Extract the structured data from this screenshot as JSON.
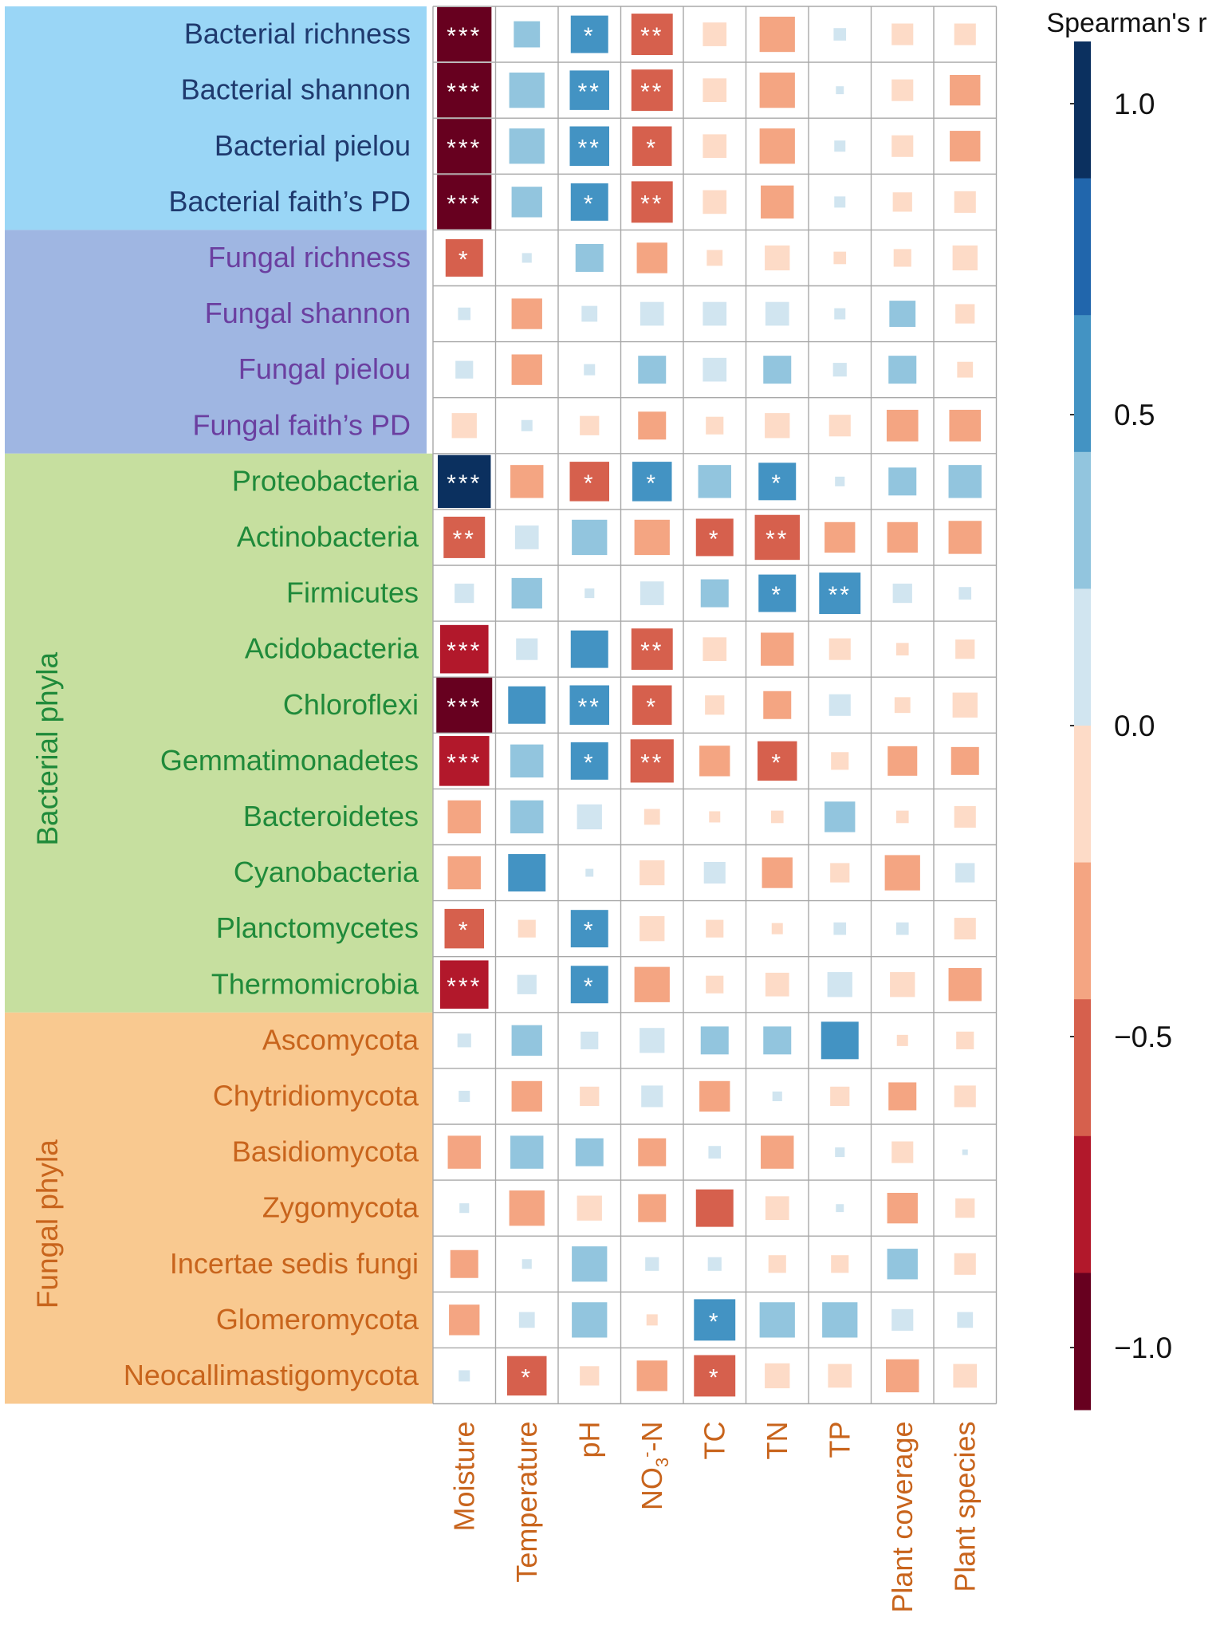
{
  "chart_data": {
    "type": "heatmap",
    "title": "",
    "colorbar": {
      "title": "Spearman's r",
      "ticks": [
        1.0,
        0.5,
        0.0,
        -0.5,
        -1.0
      ],
      "tick_labels": [
        "1.0",
        "0.5",
        "0.0",
        "−0.5",
        "−1.0"
      ],
      "range": [
        -1.1,
        1.1
      ],
      "bins": [
        {
          "from": 0.88,
          "to": 1.1,
          "color": "#0b305f"
        },
        {
          "from": 0.66,
          "to": 0.88,
          "color": "#2166ac"
        },
        {
          "from": 0.44,
          "to": 0.66,
          "color": "#4393c3"
        },
        {
          "from": 0.22,
          "to": 0.44,
          "color": "#92c5de"
        },
        {
          "from": 0.0,
          "to": 0.22,
          "color": "#d1e5f0"
        },
        {
          "from": -0.22,
          "to": 0.0,
          "color": "#fddbc7"
        },
        {
          "from": -0.44,
          "to": -0.22,
          "color": "#f4a582"
        },
        {
          "from": -0.66,
          "to": -0.44,
          "color": "#d6604d"
        },
        {
          "from": -0.88,
          "to": -0.66,
          "color": "#b2182b"
        },
        {
          "from": -1.1,
          "to": -0.88,
          "color": "#67001f"
        }
      ]
    },
    "columns": [
      {
        "label": "Moisture"
      },
      {
        "label": "Temperature"
      },
      {
        "label": "pH"
      },
      {
        "label": "NO3−-N",
        "main": "NO",
        "sub": "3",
        "sup": "-",
        "tail": "-N"
      },
      {
        "label": "TC"
      },
      {
        "label": "TN"
      },
      {
        "label": "TP"
      },
      {
        "label": "Plant coverage"
      },
      {
        "label": "Plant species"
      }
    ],
    "groups": [
      {
        "name": "",
        "color": "#9ad6f6",
        "text_color": "#1f3a6e",
        "rows": 4
      },
      {
        "name": "",
        "color": "#9fb6e2",
        "text_color": "#6b3fa0",
        "rows": 4
      },
      {
        "name": "Bacterial phyla",
        "color": "#c6df9f",
        "text_color": "#1f8a3a",
        "rows": 10
      },
      {
        "name": "Fungal phyla",
        "color": "#f9c990",
        "text_color": "#c8641c",
        "rows": 7
      }
    ],
    "rows": [
      {
        "label": "Bacterial richness",
        "values": [
          -0.95,
          0.22,
          0.45,
          -0.55,
          -0.18,
          -0.4,
          0.05,
          -0.15,
          -0.15
        ],
        "sig": [
          "***",
          "",
          "*",
          "**",
          "",
          "",
          "",
          "",
          ""
        ]
      },
      {
        "label": "Bacterial shannon",
        "values": [
          -0.95,
          0.4,
          0.5,
          -0.55,
          -0.18,
          -0.4,
          0.02,
          -0.15,
          -0.3
        ],
        "sig": [
          "***",
          "",
          "**",
          "**",
          "",
          "",
          "",
          "",
          ""
        ]
      },
      {
        "label": "Bacterial pielou",
        "values": [
          -0.95,
          0.4,
          0.5,
          -0.5,
          -0.18,
          -0.4,
          0.04,
          -0.15,
          -0.3
        ],
        "sig": [
          "***",
          "",
          "**",
          "*",
          "",
          "",
          "",
          "",
          ""
        ]
      },
      {
        "label": "Bacterial faith’s PD",
        "values": [
          -0.95,
          0.3,
          0.45,
          -0.55,
          -0.18,
          -0.35,
          0.04,
          -0.12,
          -0.15
        ],
        "sig": [
          "***",
          "",
          "*",
          "**",
          "",
          "",
          "",
          "",
          ""
        ]
      },
      {
        "label": "Fungal richness",
        "values": [
          -0.45,
          0.03,
          0.25,
          -0.3,
          -0.08,
          -0.2,
          -0.05,
          -0.1,
          -0.2
        ],
        "sig": [
          "*",
          "",
          "",
          "",
          "",
          "",
          "",
          "",
          ""
        ]
      },
      {
        "label": "Fungal shannon",
        "values": [
          0.05,
          -0.3,
          0.08,
          0.18,
          0.18,
          0.18,
          0.04,
          0.22,
          -0.12
        ],
        "sig": [
          "",
          "",
          "",
          "",
          "",
          "",
          "",
          "",
          ""
        ]
      },
      {
        "label": "Fungal pielou",
        "values": [
          0.1,
          -0.3,
          0.04,
          0.25,
          0.18,
          0.25,
          0.06,
          0.25,
          -0.08
        ],
        "sig": [
          "",
          "",
          "",
          "",
          "",
          "",
          "",
          "",
          ""
        ]
      },
      {
        "label": "Fungal faith’s PD",
        "values": [
          -0.2,
          0.04,
          -0.12,
          -0.25,
          -0.1,
          -0.2,
          -0.15,
          -0.32,
          -0.32
        ],
        "sig": [
          "",
          "",
          "",
          "",
          "",
          "",
          "",
          "",
          ""
        ]
      },
      {
        "label": "Proteobacteria",
        "values": [
          0.9,
          -0.35,
          -0.5,
          0.5,
          0.35,
          0.45,
          0.03,
          0.25,
          0.35
        ],
        "sig": [
          "***",
          "",
          "*",
          "*",
          "",
          "*",
          "",
          "",
          ""
        ]
      },
      {
        "label": "Actinobacteria",
        "values": [
          -0.55,
          0.18,
          0.4,
          -0.4,
          -0.45,
          -0.65,
          -0.3,
          -0.3,
          -0.35
        ],
        "sig": [
          "**",
          "",
          "",
          "",
          "*",
          "**",
          "",
          "",
          ""
        ]
      },
      {
        "label": "Firmicutes",
        "values": [
          0.12,
          0.3,
          0.03,
          0.18,
          0.25,
          0.45,
          0.55,
          0.12,
          0.05
        ],
        "sig": [
          "",
          "",
          "",
          "",
          "",
          "*",
          "**",
          "",
          ""
        ]
      },
      {
        "label": "Acidobacteria",
        "values": [
          -0.75,
          0.15,
          0.45,
          -0.55,
          -0.18,
          -0.35,
          -0.15,
          -0.05,
          -0.12
        ],
        "sig": [
          "***",
          "",
          "",
          "**",
          "",
          "",
          "",
          "",
          ""
        ]
      },
      {
        "label": "Chloroflexi",
        "values": [
          -1.0,
          0.45,
          0.5,
          -0.5,
          -0.12,
          -0.25,
          0.15,
          -0.08,
          -0.2
        ],
        "sig": [
          "***",
          "",
          "**",
          "*",
          "",
          "",
          "",
          "",
          ""
        ]
      },
      {
        "label": "Gemmatimonadetes",
        "values": [
          -0.8,
          0.35,
          0.45,
          -0.6,
          -0.3,
          -0.5,
          -0.1,
          -0.28,
          -0.25
        ],
        "sig": [
          "***",
          "",
          "*",
          "**",
          "",
          "*",
          "",
          "",
          ""
        ]
      },
      {
        "label": "Bacteroidetes",
        "values": [
          -0.35,
          0.35,
          0.2,
          -0.08,
          -0.04,
          -0.05,
          0.3,
          -0.05,
          -0.15
        ],
        "sig": [
          "",
          "",
          "",
          "",
          "",
          "",
          "",
          "",
          ""
        ]
      },
      {
        "label": "Cyanobacteria",
        "values": [
          -0.35,
          0.45,
          0.02,
          -0.2,
          0.15,
          -0.3,
          -0.12,
          -0.4,
          0.12
        ],
        "sig": [
          "",
          "",
          "",
          "",
          "",
          "",
          "",
          "",
          ""
        ]
      },
      {
        "label": "Planctomycetes",
        "values": [
          -0.5,
          -0.1,
          0.45,
          -0.2,
          -0.1,
          -0.04,
          0.05,
          0.05,
          -0.15
        ],
        "sig": [
          "*",
          "",
          "*",
          "",
          "",
          "",
          "",
          "",
          ""
        ]
      },
      {
        "label": "Thermomicrobia",
        "values": [
          -0.75,
          0.12,
          0.45,
          -0.4,
          -0.1,
          -0.18,
          0.2,
          -0.2,
          -0.35
        ],
        "sig": [
          "***",
          "",
          "*",
          "",
          "",
          "",
          "",
          "",
          ""
        ]
      },
      {
        "label": "Ascomycota",
        "values": [
          0.06,
          0.3,
          0.1,
          0.2,
          0.25,
          0.25,
          0.45,
          -0.04,
          -0.1
        ],
        "sig": [
          "",
          "",
          "",
          "",
          "",
          "",
          "",
          "",
          ""
        ]
      },
      {
        "label": "Chytridiomycota",
        "values": [
          0.04,
          -0.3,
          -0.12,
          0.15,
          -0.3,
          0.03,
          -0.12,
          -0.25,
          -0.15
        ],
        "sig": [
          "",
          "",
          "",
          "",
          "",
          "",
          "",
          "",
          ""
        ]
      },
      {
        "label": "Basidiomycota",
        "values": [
          -0.35,
          0.35,
          0.25,
          -0.25,
          0.05,
          -0.35,
          0.03,
          -0.15,
          0.01
        ],
        "sig": [
          "",
          "",
          "",
          "",
          "",
          "",
          "",
          "",
          ""
        ]
      },
      {
        "label": "Zygomycota",
        "values": [
          0.03,
          -0.4,
          -0.2,
          -0.25,
          -0.45,
          -0.18,
          0.02,
          -0.3,
          -0.12
        ],
        "sig": [
          "",
          "",
          "",
          "",
          "",
          "",
          "",
          "",
          ""
        ]
      },
      {
        "label": "Incertae sedis fungi",
        "values": [
          -0.25,
          0.03,
          0.4,
          0.06,
          0.06,
          -0.1,
          -0.1,
          0.3,
          -0.15
        ],
        "sig": [
          "",
          "",
          "",
          "",
          "",
          "",
          "",
          "",
          ""
        ]
      },
      {
        "label": "Glomeromycota",
        "values": [
          -0.3,
          0.08,
          0.4,
          -0.04,
          0.55,
          0.4,
          0.4,
          0.15,
          0.08
        ],
        "sig": [
          "",
          "",
          "",
          "",
          "*",
          "",
          "",
          "",
          ""
        ]
      },
      {
        "label": "Neocallimastigomycota",
        "values": [
          0.04,
          -0.5,
          -0.12,
          -0.3,
          -0.55,
          -0.2,
          -0.18,
          -0.35,
          -0.18
        ],
        "sig": [
          "",
          "*",
          "",
          "",
          "*",
          "",
          "",
          "",
          ""
        ]
      }
    ]
  }
}
